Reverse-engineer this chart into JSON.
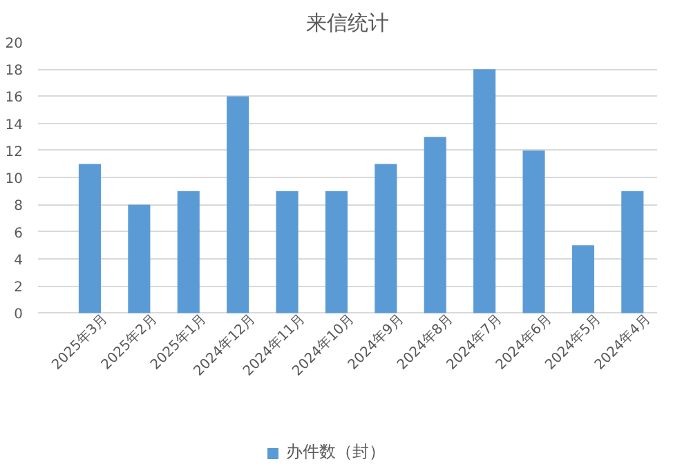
{
  "chart_data": {
    "type": "bar",
    "title": "来信统计",
    "categories": [
      "2025年3月",
      "2025年2月",
      "2025年1月",
      "2024年12月",
      "2024年11月",
      "2024年10月",
      "2024年9月",
      "2024年8月",
      "2024年7月",
      "2024年6月",
      "2024年5月",
      "2024年4月"
    ],
    "series": [
      {
        "name": "办件数（封）",
        "color": "#5b9bd5",
        "values": [
          11,
          8,
          9,
          16,
          9,
          9,
          11,
          13,
          18,
          12,
          5,
          9
        ]
      }
    ],
    "ylim": [
      0,
      20
    ],
    "yticks": [
      0,
      2,
      4,
      6,
      8,
      10,
      12,
      14,
      16,
      18,
      20
    ],
    "grid": "y",
    "legend": "bottom"
  }
}
